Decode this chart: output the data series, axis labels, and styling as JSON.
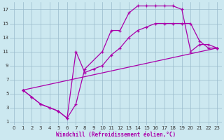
{
  "xlabel": "Windchill (Refroidissement éolien,°C)",
  "bg_color": "#cce8f0",
  "line_color": "#aa00aa",
  "grid_color": "#99bbcc",
  "xlim": [
    -0.5,
    23.5
  ],
  "ylim": [
    0.5,
    18
  ],
  "xticks": [
    0,
    1,
    2,
    3,
    4,
    5,
    6,
    7,
    8,
    9,
    10,
    11,
    12,
    13,
    14,
    15,
    16,
    17,
    18,
    19,
    20,
    21,
    22,
    23
  ],
  "yticks": [
    1,
    3,
    5,
    7,
    9,
    11,
    13,
    15,
    17
  ],
  "curves": [
    {
      "x": [
        1,
        2,
        3,
        4,
        5,
        6,
        7,
        8,
        10,
        11,
        12,
        13,
        14,
        15,
        16,
        17,
        18,
        19,
        20,
        21,
        22,
        23
      ],
      "y": [
        5.5,
        4.5,
        3.5,
        3.0,
        2.5,
        1.5,
        3.5,
        8.5,
        11.0,
        14.0,
        14.0,
        16.5,
        17.5,
        17.5,
        17.5,
        17.5,
        17.5,
        17.0,
        11.0,
        12.0,
        12.0,
        11.5
      ]
    },
    {
      "x": [
        1,
        2,
        3,
        4,
        5,
        6,
        7,
        8,
        9,
        10,
        11,
        12,
        13,
        14,
        15,
        16,
        17,
        18,
        19,
        20,
        21,
        22,
        23
      ],
      "y": [
        5.5,
        4.5,
        3.5,
        3.0,
        2.5,
        1.5,
        11.0,
        8.0,
        8.5,
        9.0,
        10.5,
        11.5,
        13.0,
        14.0,
        14.5,
        15.0,
        15.0,
        15.0,
        15.0,
        15.0,
        12.5,
        11.5,
        11.5
      ]
    },
    {
      "x": [
        1,
        23
      ],
      "y": [
        5.5,
        11.5
      ]
    }
  ]
}
